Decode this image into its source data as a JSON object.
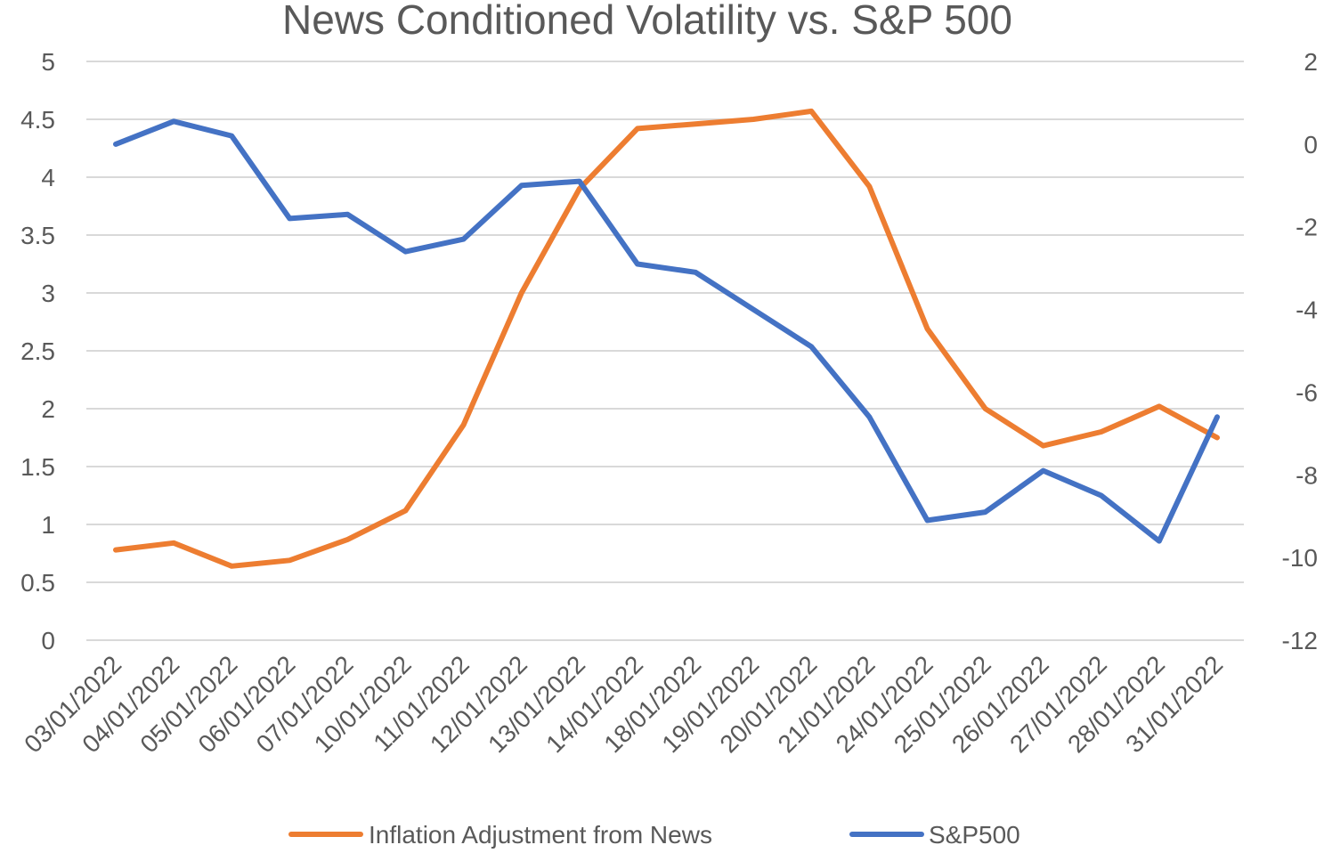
{
  "chart_data": {
    "type": "line",
    "title": "News Conditioned Volatility vs. S&P 500",
    "categories": [
      "03/01/2022",
      "04/01/2022",
      "05/01/2022",
      "06/01/2022",
      "07/01/2022",
      "10/01/2022",
      "11/01/2022",
      "12/01/2022",
      "13/01/2022",
      "14/01/2022",
      "18/01/2022",
      "19/01/2022",
      "20/01/2022",
      "21/01/2022",
      "24/01/2022",
      "25/01/2022",
      "26/01/2022",
      "27/01/2022",
      "28/01/2022",
      "31/01/2022"
    ],
    "y_left": {
      "min": 0,
      "max": 5,
      "step": 0.5,
      "ticks": [
        "0",
        "0.5",
        "1",
        "1.5",
        "2",
        "2.5",
        "3",
        "3.5",
        "4",
        "4.5",
        "5"
      ]
    },
    "y_right": {
      "min": -12,
      "max": 2,
      "step": 2,
      "ticks": [
        "-12",
        "-10",
        "-8",
        "-6",
        "-4",
        "-2",
        "0",
        "2"
      ]
    },
    "grid": true,
    "legend_position": "bottom",
    "series": [
      {
        "name": "Inflation Adjustment from News",
        "axis": "left",
        "color": "#ed7d31",
        "values": [
          0.78,
          0.84,
          0.64,
          0.69,
          0.87,
          1.12,
          1.86,
          3.0,
          3.9,
          4.42,
          4.46,
          4.5,
          4.57,
          3.92,
          2.69,
          2.0,
          1.68,
          1.8,
          2.02,
          1.75
        ]
      },
      {
        "name": "S&P500",
        "axis": "right",
        "color": "#4472c4",
        "values": [
          0.0,
          0.55,
          0.2,
          -1.8,
          -1.7,
          -2.6,
          -2.3,
          -1.0,
          -0.9,
          -2.9,
          -3.1,
          -4.0,
          -4.9,
          -6.6,
          -9.1,
          -8.9,
          -7.9,
          -8.5,
          -9.6,
          -6.6
        ]
      }
    ]
  }
}
